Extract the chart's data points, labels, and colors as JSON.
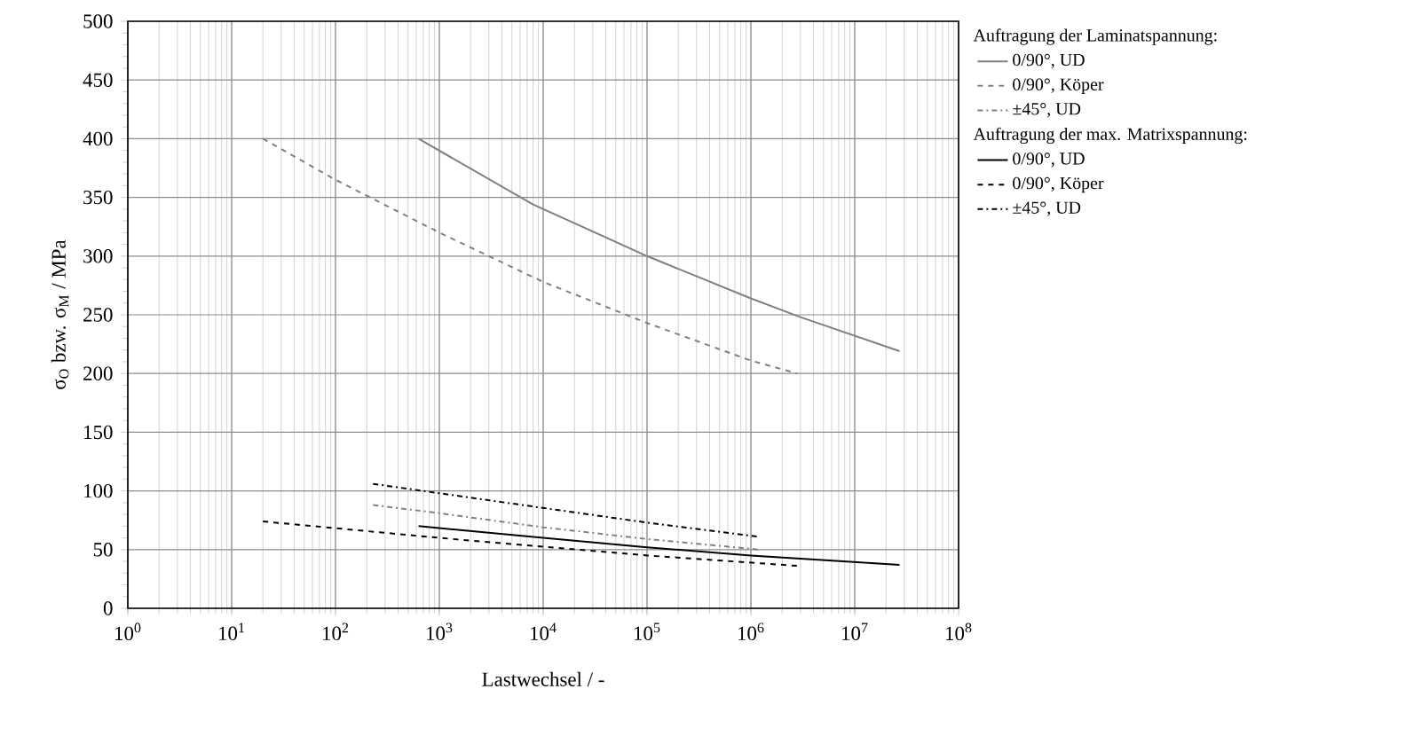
{
  "chart_data": {
    "type": "line",
    "xlabel": "Lastwechsel / -",
    "ylabel": "σ$_{O}$ bzw. σ$_{M}$ / MPa",
    "log": "x",
    "grid": true,
    "legend": "right",
    "marker": "none",
    "xlim": [
      1,
      100000000
    ],
    "ylim": [
      0,
      500
    ],
    "xticks": [
      {
        "value": 1,
        "label": "10$^{0}$"
      },
      {
        "value": 10,
        "label": "10$^{1}$"
      },
      {
        "value": 100,
        "label": "10$^{2}$"
      },
      {
        "value": 1000,
        "label": "10$^{3}$"
      },
      {
        "value": 10000,
        "label": "10$^{4}$"
      },
      {
        "value": 100000,
        "label": "10$^{5}$"
      },
      {
        "value": 1000000,
        "label": "10$^{6}$"
      },
      {
        "value": 10000000,
        "label": "10$^{7}$"
      },
      {
        "value": 100000000,
        "label": "10$^{8}$"
      }
    ],
    "yticks": [
      0,
      50,
      100,
      150,
      200,
      250,
      300,
      350,
      400,
      450,
      500
    ],
    "annotations": [
      "Auftragung der Laminatspannung:",
      "Auftragung der max. Matrixspannung:"
    ],
    "series": [
      {
        "name": "0/90°, UD",
        "color": "#808080",
        "line_style": "solid",
        "x": [
          630,
          8000,
          100000,
          1000000,
          3000000,
          27000000
        ],
        "values": [
          400,
          344,
          300,
          264,
          248,
          219
        ]
      },
      {
        "name": "0/90°, Köper",
        "color": "#808080",
        "line_style": "dashed",
        "x": [
          20,
          100,
          1000,
          10000,
          100000,
          1000000,
          2800000
        ],
        "values": [
          400,
          365,
          320,
          278,
          243,
          211,
          200
        ]
      },
      {
        "name": "±45°, UD",
        "color": "#808080",
        "line_style": "dashdot",
        "x": [
          230,
          1000,
          10000,
          100000,
          1200000
        ],
        "values": [
          88,
          81,
          69,
          59,
          50
        ]
      },
      {
        "name": "0/90°, UD",
        "color": "#000000",
        "line_style": "solid",
        "x": [
          630,
          10000,
          100000,
          1000000,
          27000000
        ],
        "values": [
          70,
          60,
          52,
          45,
          37
        ]
      },
      {
        "name": "0/90°, Köper",
        "color": "#000000",
        "line_style": "dashed",
        "x": [
          20,
          1000,
          100000,
          3000000
        ],
        "values": [
          74,
          60,
          45,
          36
        ]
      },
      {
        "name": "±45°, UD",
        "color": "#000000",
        "line_style": "dashdot",
        "x": [
          230,
          1000,
          100000,
          1200000
        ],
        "values": [
          106,
          98,
          73,
          61
        ]
      }
    ]
  }
}
